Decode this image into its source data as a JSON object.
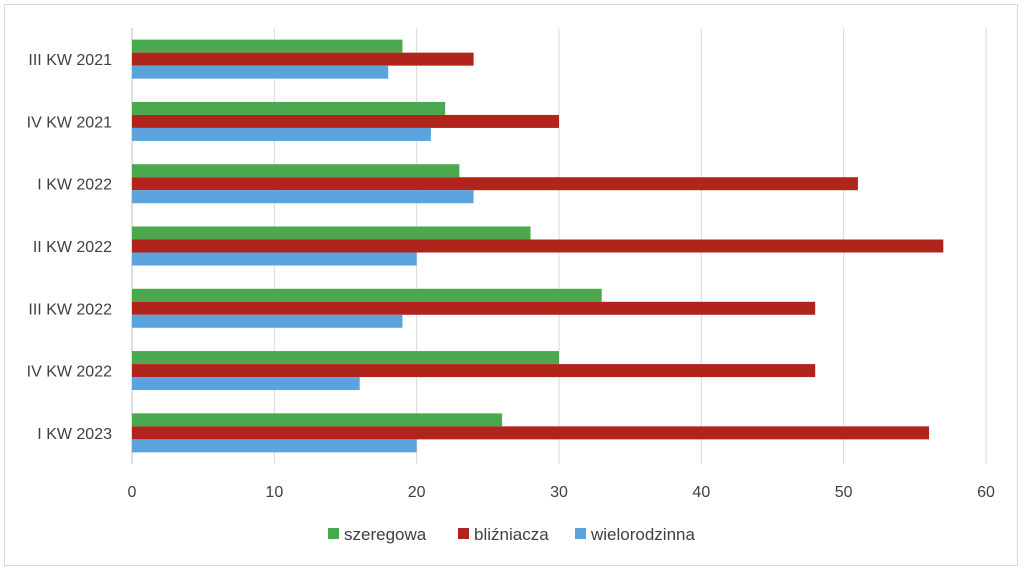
{
  "chart_data": {
    "type": "bar",
    "orientation": "horizontal",
    "title": "",
    "xlabel": "",
    "ylabel": "",
    "categories": [
      "III KW 2021",
      "IV KW 2021",
      "I KW 2022",
      "II KW 2022",
      "III KW 2022",
      "IV KW 2022",
      "I KW 2023"
    ],
    "series": [
      {
        "name": "szeregowa",
        "color": "#4aa84e",
        "values": [
          19,
          22,
          23,
          28,
          33,
          30,
          26
        ]
      },
      {
        "name": "bliźniacza",
        "color": "#b0241b",
        "values": [
          24,
          30,
          51,
          57,
          48,
          48,
          56
        ]
      },
      {
        "name": "wielorodzinna",
        "color": "#5ba3dc",
        "values": [
          18,
          21,
          24,
          20,
          19,
          16,
          20
        ]
      }
    ],
    "xlim": [
      0,
      60
    ],
    "xticks": [
      "0",
      "10",
      "20",
      "30",
      "40",
      "50",
      "60"
    ],
    "grid": "vertical",
    "legend_position": "bottom"
  }
}
